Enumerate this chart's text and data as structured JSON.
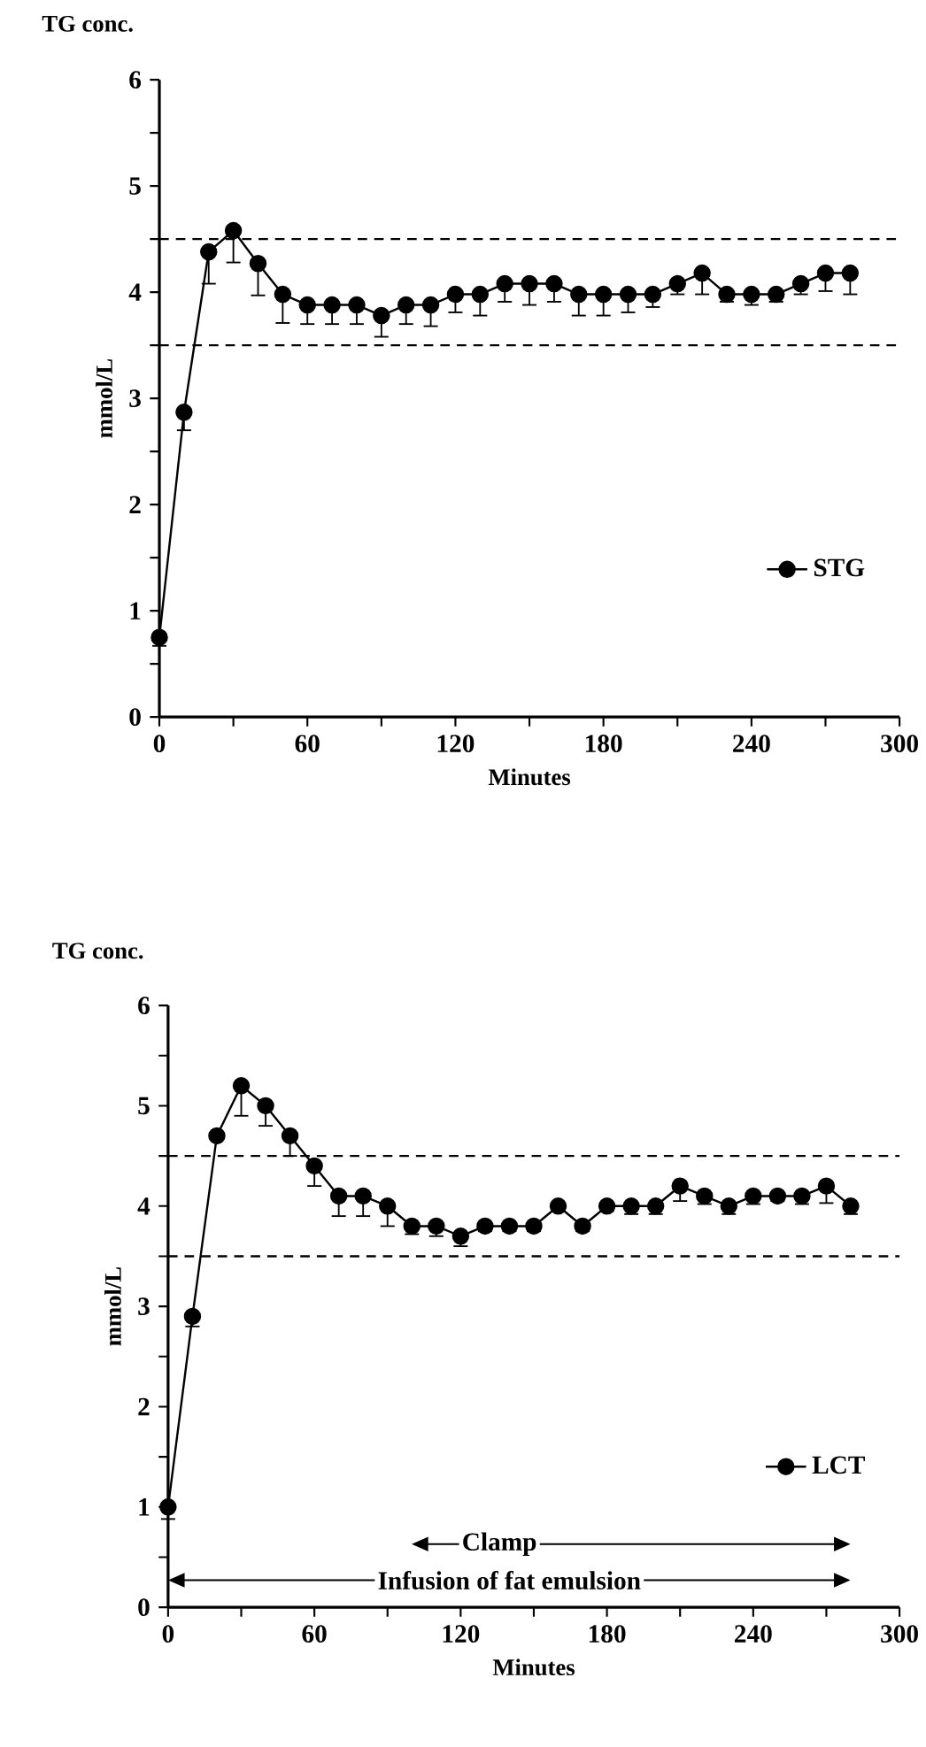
{
  "chart_data": [
    {
      "type": "line",
      "title": "TG conc.",
      "xlabel": "Minutes",
      "ylabel": "mmol/L",
      "x": [
        0,
        10,
        20,
        30,
        40,
        50,
        60,
        70,
        80,
        90,
        100,
        110,
        120,
        130,
        140,
        150,
        160,
        170,
        180,
        190,
        200,
        210,
        220,
        230,
        240,
        250,
        260,
        270,
        280
      ],
      "series": [
        {
          "name": "STG",
          "color": "#000000",
          "marker": "circle",
          "values": [
            0.75,
            2.87,
            4.38,
            4.58,
            4.27,
            3.98,
            3.88,
            3.88,
            3.88,
            3.78,
            3.88,
            3.88,
            3.98,
            3.98,
            4.08,
            4.08,
            4.08,
            3.98,
            3.98,
            3.98,
            3.98,
            4.08,
            4.18,
            3.98,
            3.98,
            3.98,
            4.08,
            4.18,
            4.18
          ],
          "errors": [
            [
              0.67,
              0.75
            ],
            [
              2.7,
              2.87
            ],
            [
              4.08,
              4.38
            ],
            [
              4.28,
              4.58
            ],
            [
              3.97,
              4.27
            ],
            [
              3.71,
              3.98
            ],
            [
              3.7,
              3.88
            ],
            [
              3.7,
              3.88
            ],
            [
              3.7,
              3.88
            ],
            [
              3.58,
              3.78
            ],
            [
              3.7,
              3.88
            ],
            [
              3.68,
              3.88
            ],
            [
              3.81,
              3.98
            ],
            [
              3.78,
              3.98
            ],
            [
              3.91,
              4.08
            ],
            [
              3.88,
              4.08
            ],
            [
              3.91,
              4.08
            ],
            [
              3.78,
              3.98
            ],
            [
              3.78,
              3.98
            ],
            [
              3.81,
              3.98
            ],
            [
              3.86,
              3.98
            ],
            [
              3.98,
              4.08
            ],
            [
              3.98,
              4.18
            ],
            [
              3.91,
              3.98
            ],
            [
              3.88,
              3.98
            ],
            [
              3.91,
              3.98
            ],
            [
              3.98,
              4.08
            ],
            [
              4.01,
              4.18
            ],
            [
              3.98,
              4.18
            ]
          ]
        }
      ],
      "xlim": [
        0,
        300
      ],
      "ylim": [
        0,
        6
      ],
      "xticks": [
        0,
        {
          "value": 30,
          "label": null
        },
        60,
        {
          "value": 90,
          "label": null
        },
        120,
        {
          "value": 150,
          "label": null
        },
        180,
        {
          "value": 210,
          "label": null
        },
        240,
        {
          "value": 270,
          "label": null
        },
        300
      ],
      "yticks": [
        0,
        {
          "value": 0.5,
          "label": null
        },
        1,
        {
          "value": 1.5,
          "label": null
        },
        2,
        {
          "value": 2.5,
          "label": null
        },
        3,
        {
          "value": 3.5,
          "label": null
        },
        4,
        {
          "value": 4.5,
          "label": null
        },
        5,
        {
          "value": 5.5,
          "label": null
        },
        6
      ],
      "ref_lines": [
        {
          "axis": "y",
          "value": 4.5,
          "line_style": "dashed"
        },
        {
          "axis": "y",
          "value": 3.5,
          "line_style": "dashed"
        }
      ],
      "legend": "bottom right",
      "line_style": "solid"
    },
    {
      "type": "line",
      "title": "TG conc.",
      "xlabel": "Minutes",
      "ylabel": "mmol/L",
      "x": [
        0,
        10,
        20,
        30,
        40,
        50,
        60,
        70,
        80,
        90,
        100,
        110,
        120,
        130,
        140,
        150,
        160,
        170,
        180,
        190,
        200,
        210,
        220,
        230,
        240,
        250,
        260,
        270,
        280
      ],
      "series": [
        {
          "name": "LCT",
          "color": "#000000",
          "marker": "circle",
          "values": [
            1.0,
            2.9,
            4.7,
            5.2,
            5.0,
            4.7,
            4.4,
            4.1,
            4.1,
            4.0,
            3.8,
            3.8,
            3.7,
            3.8,
            3.8,
            3.8,
            4.0,
            3.8,
            4.0,
            4.0,
            4.0,
            4.2,
            4.1,
            4.0,
            4.1,
            4.1,
            4.1,
            4.2,
            4.0
          ],
          "errors": [
            [
              0.88,
              1.0
            ],
            [
              2.8,
              2.9
            ],
            null,
            [
              4.9,
              5.2
            ],
            [
              4.8,
              5.0
            ],
            [
              4.5,
              4.7
            ],
            [
              4.2,
              4.4
            ],
            [
              3.9,
              4.1
            ],
            [
              3.9,
              4.1
            ],
            [
              3.8,
              4.0
            ],
            [
              3.72,
              3.8
            ],
            [
              3.7,
              3.8
            ],
            [
              3.6,
              3.7
            ],
            [
              3.75,
              3.8
            ],
            [
              3.75,
              3.8
            ],
            [
              3.75,
              3.8
            ],
            [
              3.95,
              4.0
            ],
            [
              3.75,
              3.8
            ],
            [
              3.95,
              4.0
            ],
            [
              3.92,
              4.0
            ],
            [
              3.92,
              4.0
            ],
            [
              4.05,
              4.2
            ],
            [
              4.02,
              4.1
            ],
            [
              3.92,
              4.0
            ],
            [
              4.02,
              4.1
            ],
            [
              4.05,
              4.1
            ],
            [
              4.02,
              4.1
            ],
            [
              4.03,
              4.2
            ],
            [
              3.92,
              4.0
            ]
          ]
        }
      ],
      "xlim": [
        0,
        300
      ],
      "ylim": [
        0,
        6
      ],
      "xticks": [
        0,
        {
          "value": 30,
          "label": null
        },
        60,
        {
          "value": 90,
          "label": null
        },
        120,
        {
          "value": 150,
          "label": null
        },
        180,
        {
          "value": 210,
          "label": null
        },
        240,
        {
          "value": 270,
          "label": null
        },
        300
      ],
      "yticks": [
        0,
        {
          "value": 0.5,
          "label": null
        },
        1,
        {
          "value": 1.5,
          "label": null
        },
        2,
        {
          "value": 2.5,
          "label": null
        },
        3,
        {
          "value": 3.5,
          "label": null
        },
        4,
        {
          "value": 4.5,
          "label": null
        },
        5,
        {
          "value": 5.5,
          "label": null
        },
        6
      ],
      "ref_lines": [
        {
          "axis": "y",
          "value": 4.5,
          "line_style": "dashed"
        },
        {
          "axis": "y",
          "value": 3.5,
          "line_style": "dashed"
        }
      ],
      "annotations": [
        "Clamp",
        "Infusion of fat emulsion"
      ],
      "legend": "bottom right",
      "line_style": "solid"
    }
  ]
}
